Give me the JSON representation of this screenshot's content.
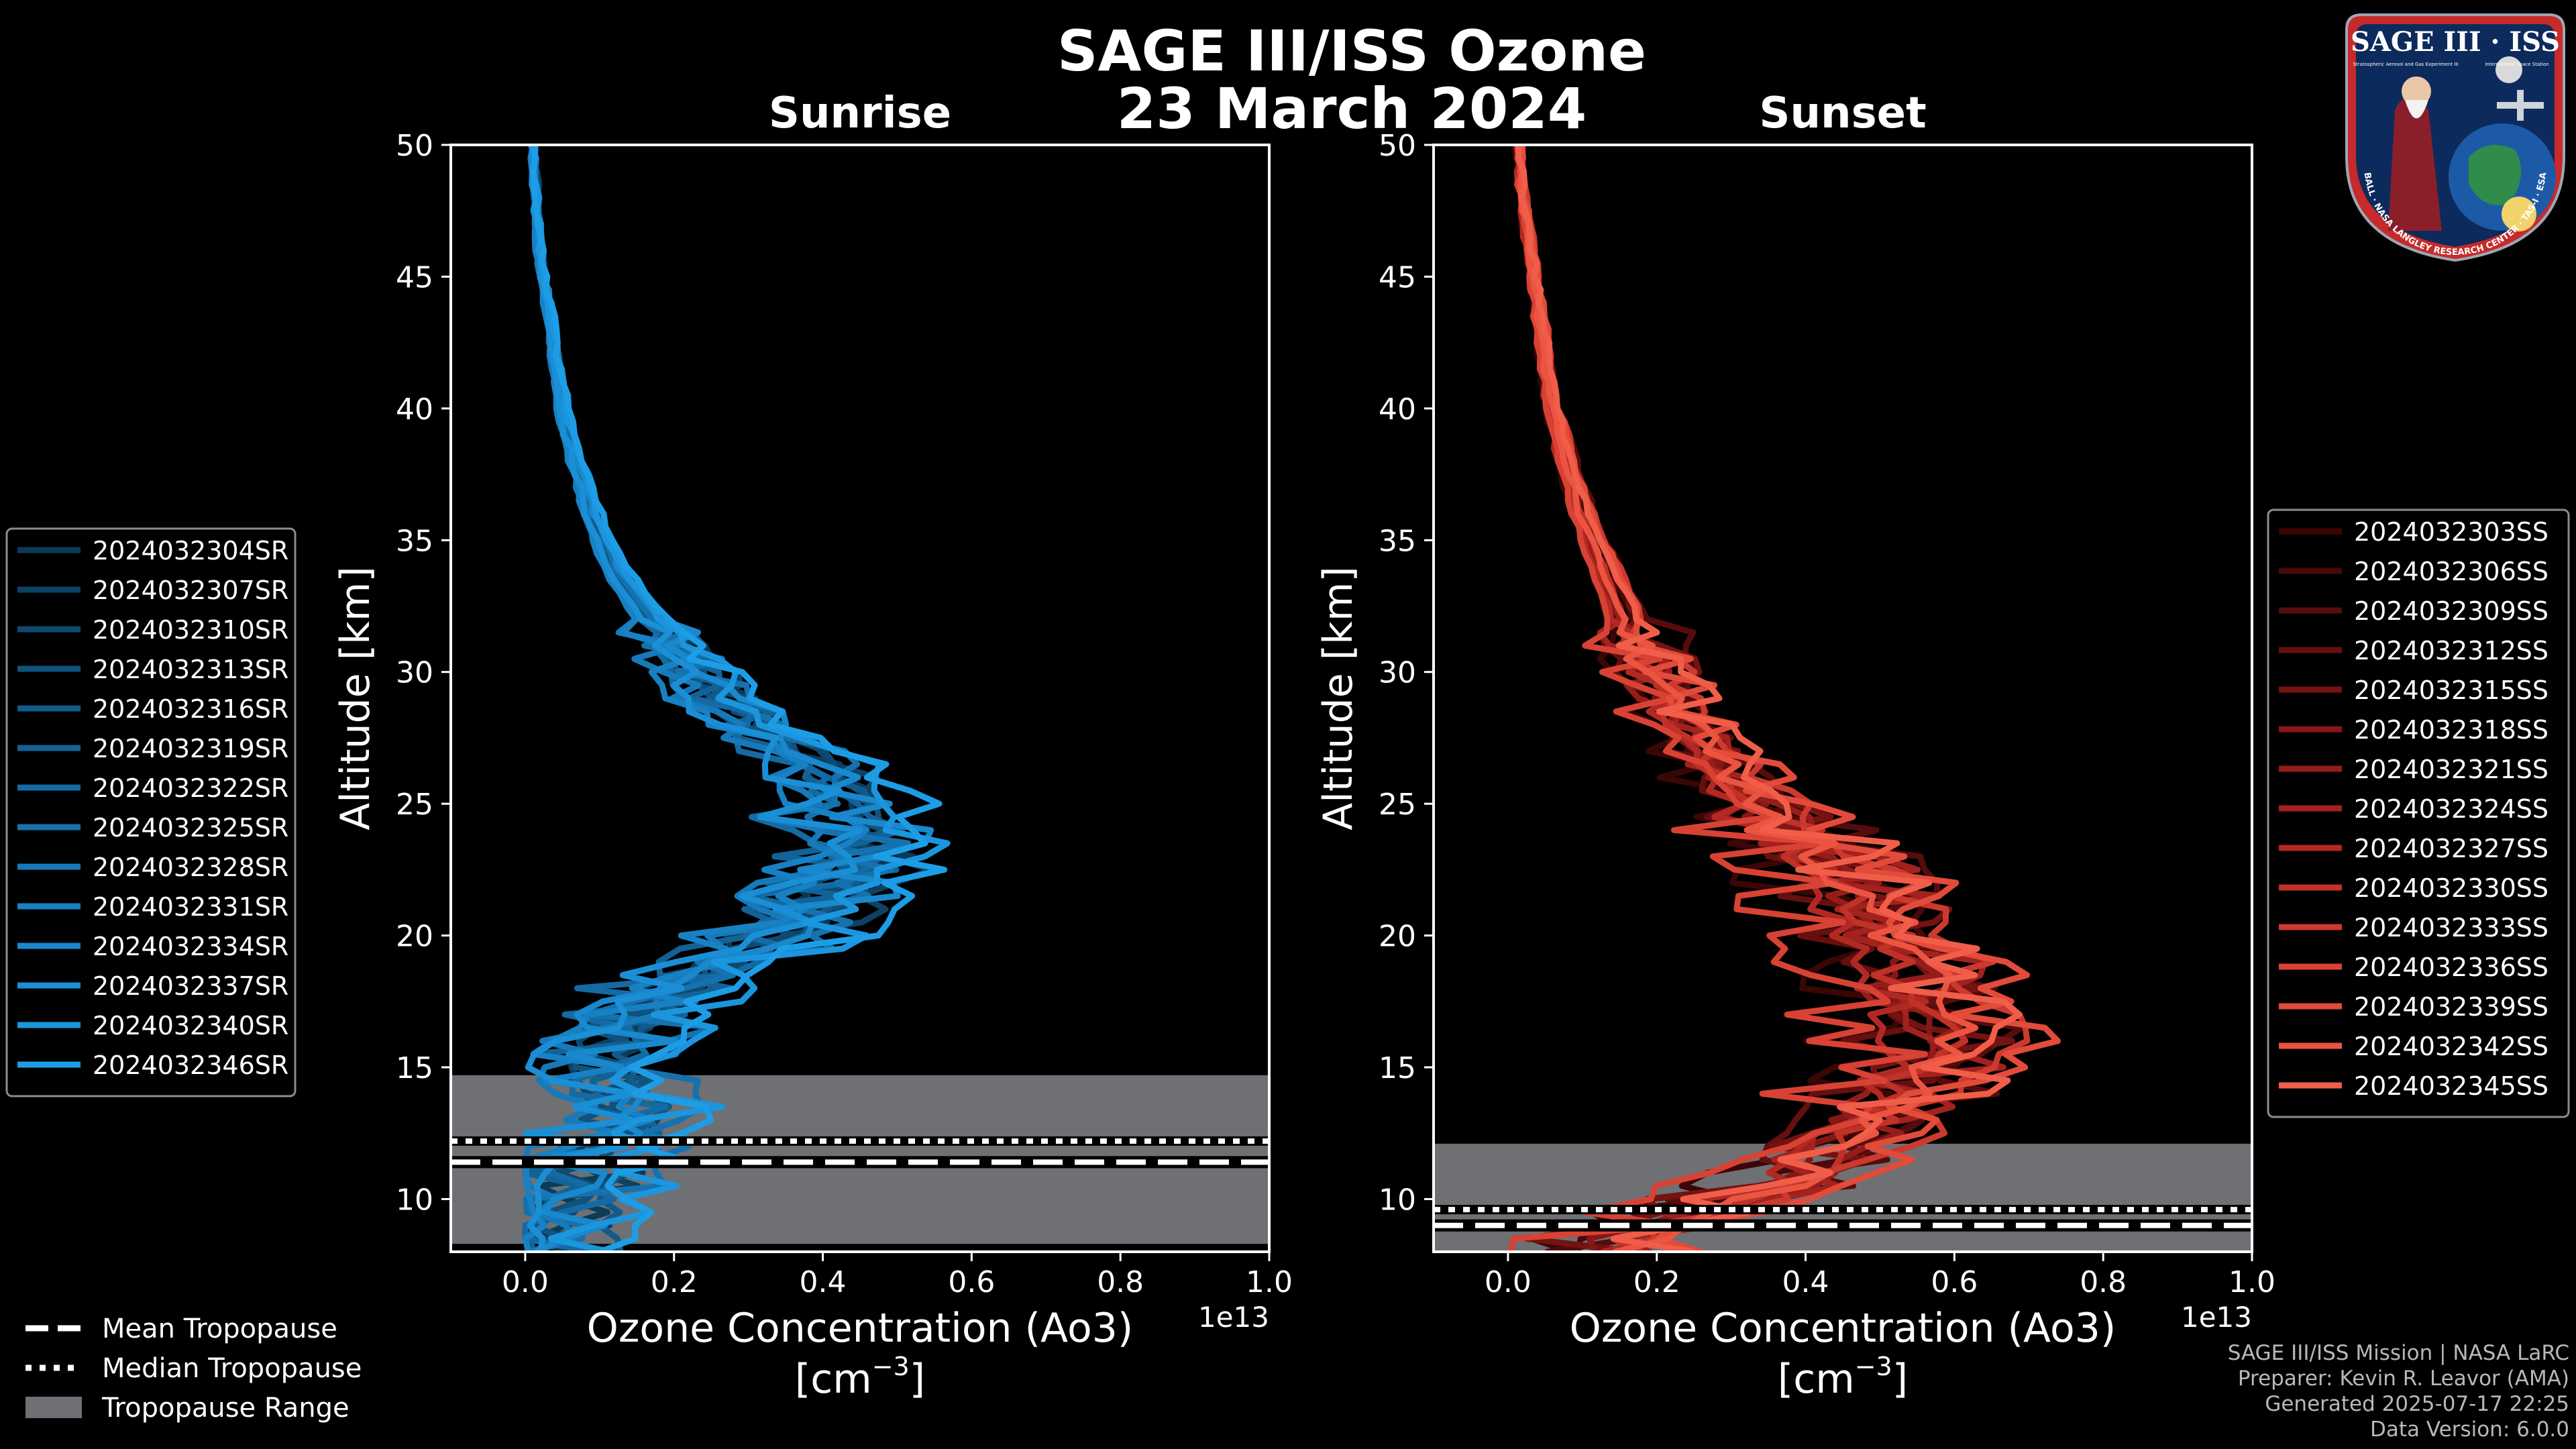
{
  "title_line1": "SAGE III/ISS Ozone",
  "title_line2": "23 March 2024",
  "logo": {
    "name": "SAGE III · ISS",
    "ring_text": "BALL · NASA LANGLEY RESEARCH CENTER · TAS-I · ESA",
    "subtitle_left": "Stratospheric Aerosol and Gas Experiment III",
    "subtitle_right": "International Space Station"
  },
  "colors": {
    "background": "#000000",
    "sunrise_base": "#1a8fd0",
    "sunset_base": "#e8523e",
    "tropopause_range": "#6e7073",
    "axis": "#ffffff"
  },
  "footer": {
    "line1": "SAGE III/ISS Mission | NASA LaRC",
    "line2": "Preparer: Kevin R. Leavor (AMA)",
    "line3": "Generated 2025-07-17 22:25",
    "line4": "Data Version: 6.0.0"
  },
  "bottom_legend": [
    {
      "label": "Mean Tropopause",
      "style": "dashed"
    },
    {
      "label": "Median Tropopause",
      "style": "dotted"
    },
    {
      "label": "Tropopause Range",
      "style": "patch"
    }
  ],
  "chart_data": [
    {
      "type": "line",
      "title": "Sunrise",
      "xlabel": "Ozone Concentration (Ao3)",
      "xlabel_units": "[cm",
      "units_exponent": "−3",
      "units_close": "]",
      "ylabel": "Altitude [km]",
      "offset_text": "1e13",
      "xlim": [
        -0.1,
        1.0
      ],
      "ylim": [
        8,
        50
      ],
      "x_ticks": [
        "0.0",
        "0.2",
        "0.4",
        "0.6",
        "0.8",
        "1.0"
      ],
      "x_tick_values": [
        0,
        0.2,
        0.4,
        0.6,
        0.8,
        1.0
      ],
      "y_ticks": [
        "10",
        "15",
        "20",
        "25",
        "30",
        "35",
        "40",
        "45",
        "50"
      ],
      "y_tick_values": [
        10,
        15,
        20,
        25,
        30,
        35,
        40,
        45,
        50
      ],
      "tropopause": {
        "mean": 11.4,
        "median": 12.2,
        "range": [
          8.3,
          14.7
        ]
      },
      "mean_profile": {
        "altitude": [
          8.5,
          10,
          11,
          12,
          13,
          14,
          15,
          16,
          17,
          18,
          19,
          20,
          21,
          22,
          23,
          24,
          25,
          26,
          27,
          28,
          29,
          30,
          32,
          34,
          36,
          38,
          40,
          42,
          44,
          46,
          48,
          50
        ],
        "ozone": [
          0.05,
          0.07,
          0.1,
          0.12,
          0.14,
          0.14,
          0.12,
          0.13,
          0.16,
          0.2,
          0.27,
          0.35,
          0.4,
          0.43,
          0.44,
          0.45,
          0.45,
          0.42,
          0.37,
          0.31,
          0.27,
          0.23,
          0.17,
          0.12,
          0.09,
          0.07,
          0.05,
          0.04,
          0.03,
          0.02,
          0.015,
          0.01
        ]
      },
      "legend_position": "left",
      "series": [
        {
          "name": "2024032304SR",
          "color": "#0b3b57"
        },
        {
          "name": "2024032307SR",
          "color": "#0d4264"
        },
        {
          "name": "2024032310SR",
          "color": "#0e4a70"
        },
        {
          "name": "2024032313SR",
          "color": "#10527d"
        },
        {
          "name": "2024032316SR",
          "color": "#115a89"
        },
        {
          "name": "2024032319SR",
          "color": "#126296"
        },
        {
          "name": "2024032322SR",
          "color": "#146aa2"
        },
        {
          "name": "2024032325SR",
          "color": "#1572ae"
        },
        {
          "name": "2024032328SR",
          "color": "#167aba"
        },
        {
          "name": "2024032331SR",
          "color": "#1781c4"
        },
        {
          "name": "2024032334SR",
          "color": "#1988cd"
        },
        {
          "name": "2024032337SR",
          "color": "#1a8fd6"
        },
        {
          "name": "2024032340SR",
          "color": "#1b96de"
        },
        {
          "name": "2024032346SR",
          "color": "#1d9de6"
        }
      ]
    },
    {
      "type": "line",
      "title": "Sunset",
      "xlabel": "Ozone Concentration (Ao3)",
      "xlabel_units": "[cm",
      "units_exponent": "−3",
      "units_close": "]",
      "ylabel": "Altitude [km]",
      "offset_text": "1e13",
      "xlim": [
        -0.1,
        1.0
      ],
      "ylim": [
        8,
        50
      ],
      "x_ticks": [
        "0.0",
        "0.2",
        "0.4",
        "0.6",
        "0.8",
        "1.0"
      ],
      "x_tick_values": [
        0,
        0.2,
        0.4,
        0.6,
        0.8,
        1.0
      ],
      "y_ticks": [
        "10",
        "15",
        "20",
        "25",
        "30",
        "35",
        "40",
        "45",
        "50"
      ],
      "y_tick_values": [
        10,
        15,
        20,
        25,
        30,
        35,
        40,
        45,
        50
      ],
      "tropopause": {
        "mean": 9.0,
        "median": 9.6,
        "range": [
          8.0,
          12.1
        ]
      },
      "mean_profile": {
        "altitude": [
          8.5,
          9.5,
          10.5,
          11.5,
          12.5,
          13.5,
          14.5,
          15.5,
          16.5,
          17.5,
          18.5,
          19.5,
          20.5,
          21.5,
          22.5,
          24,
          26,
          28,
          30,
          32,
          34,
          36,
          38,
          40,
          42,
          44,
          46,
          48,
          50
        ],
        "ozone": [
          0.15,
          0.25,
          0.35,
          0.42,
          0.48,
          0.5,
          0.55,
          0.58,
          0.58,
          0.56,
          0.55,
          0.52,
          0.5,
          0.48,
          0.45,
          0.38,
          0.3,
          0.24,
          0.2,
          0.16,
          0.13,
          0.1,
          0.08,
          0.06,
          0.05,
          0.04,
          0.03,
          0.02,
          0.015
        ]
      },
      "legend_position": "right",
      "series": [
        {
          "name": "2024032303SS",
          "color": "#3a0606"
        },
        {
          "name": "2024032306SS",
          "color": "#470909"
        },
        {
          "name": "2024032309SS",
          "color": "#560c0c"
        },
        {
          "name": "2024032312SS",
          "color": "#650f0f"
        },
        {
          "name": "2024032315SS",
          "color": "#741312"
        },
        {
          "name": "2024032318SS",
          "color": "#841816"
        },
        {
          "name": "2024032321SS",
          "color": "#941d1a"
        },
        {
          "name": "2024032324SS",
          "color": "#a3221e"
        },
        {
          "name": "2024032327SS",
          "color": "#b22923"
        },
        {
          "name": "2024032330SS",
          "color": "#c03128"
        },
        {
          "name": "2024032333SS",
          "color": "#cc392e"
        },
        {
          "name": "2024032336SS",
          "color": "#d84234"
        },
        {
          "name": "2024032339SS",
          "color": "#e24b3a"
        },
        {
          "name": "2024032342SS",
          "color": "#ea5441"
        },
        {
          "name": "2024032345SS",
          "color": "#f05e4a"
        }
      ]
    }
  ]
}
